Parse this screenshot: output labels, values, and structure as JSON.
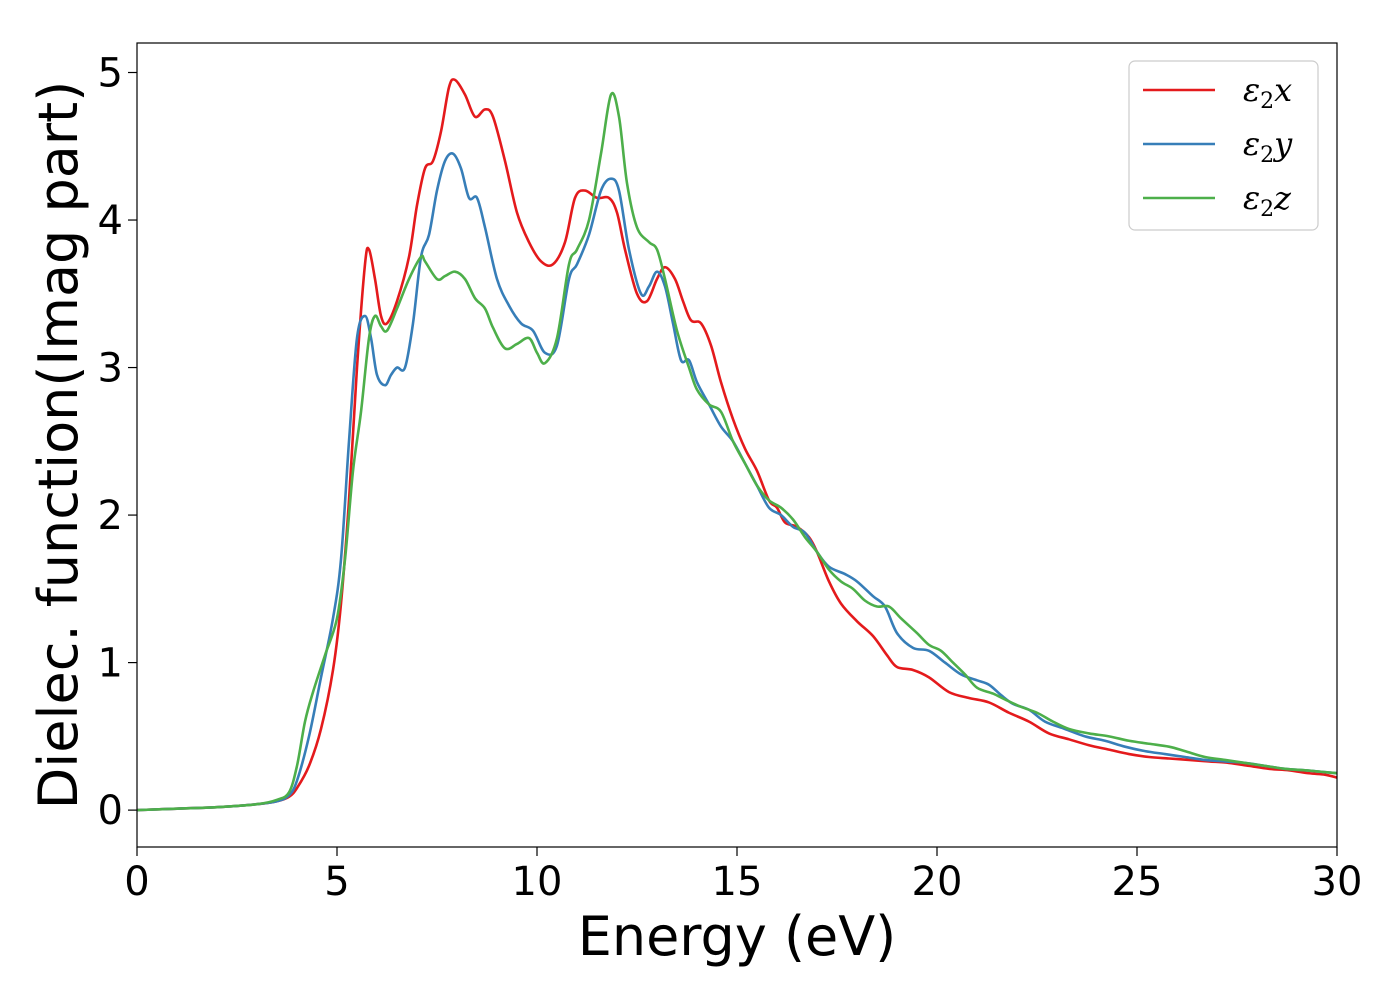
{
  "chart_data": {
    "type": "line",
    "title": "",
    "xlabel": "Energy (eV)",
    "ylabel": "Dielec. function(Imag part)",
    "xlim": [
      0,
      30
    ],
    "ylim": [
      -0.25,
      5.2
    ],
    "xticks": [
      0,
      5,
      10,
      15,
      20,
      25,
      30
    ],
    "yticks": [
      0,
      1,
      2,
      3,
      4,
      5
    ],
    "grid": false,
    "legend_position": "top-right",
    "series": [
      {
        "name": "ε₂x",
        "legend_base": "ε",
        "legend_sub": "2",
        "legend_var": "x",
        "color": "#e41a1c",
        "x": [
          0,
          1,
          2,
          3,
          3.5,
          3.8,
          4.0,
          4.3,
          4.6,
          4.9,
          5.1,
          5.3,
          5.5,
          5.7,
          5.8,
          5.95,
          6.1,
          6.25,
          6.5,
          6.8,
          7.0,
          7.2,
          7.4,
          7.6,
          7.8,
          7.95,
          8.2,
          8.45,
          8.7,
          8.9,
          9.2,
          9.5,
          9.8,
          10.1,
          10.4,
          10.7,
          10.95,
          11.2,
          11.5,
          11.8,
          12.0,
          12.2,
          12.5,
          12.75,
          13.0,
          13.2,
          13.45,
          13.65,
          13.85,
          14.1,
          14.35,
          14.6,
          14.9,
          15.2,
          15.5,
          15.8,
          16.0,
          16.2,
          16.5,
          16.8,
          17.0,
          17.3,
          17.6,
          18.0,
          18.4,
          18.75,
          19.0,
          19.4,
          19.8,
          20.3,
          20.8,
          21.3,
          21.8,
          22.3,
          22.8,
          23.3,
          23.8,
          24.3,
          24.8,
          25.3,
          25.8,
          26.3,
          26.8,
          27.3,
          27.8,
          28.3,
          28.8,
          29.3,
          29.7,
          30
        ],
        "y": [
          0.0,
          0.01,
          0.02,
          0.04,
          0.06,
          0.09,
          0.15,
          0.3,
          0.55,
          0.95,
          1.4,
          2.1,
          3.0,
          3.7,
          3.8,
          3.6,
          3.35,
          3.3,
          3.45,
          3.75,
          4.1,
          4.35,
          4.4,
          4.6,
          4.9,
          4.95,
          4.85,
          4.7,
          4.75,
          4.7,
          4.4,
          4.05,
          3.85,
          3.72,
          3.7,
          3.85,
          4.15,
          4.2,
          4.15,
          4.15,
          4.05,
          3.8,
          3.5,
          3.45,
          3.6,
          3.68,
          3.6,
          3.45,
          3.32,
          3.3,
          3.15,
          2.9,
          2.65,
          2.45,
          2.3,
          2.1,
          2.05,
          1.95,
          1.92,
          1.85,
          1.75,
          1.55,
          1.4,
          1.28,
          1.18,
          1.05,
          0.97,
          0.95,
          0.9,
          0.8,
          0.76,
          0.73,
          0.66,
          0.6,
          0.52,
          0.48,
          0.44,
          0.41,
          0.38,
          0.36,
          0.35,
          0.34,
          0.33,
          0.32,
          0.3,
          0.28,
          0.27,
          0.25,
          0.24,
          0.22
        ]
      },
      {
        "name": "ε₂y",
        "legend_base": "ε",
        "legend_sub": "2",
        "legend_var": "y",
        "color": "#377eb8",
        "x": [
          0,
          1,
          2,
          3,
          3.5,
          3.8,
          4.0,
          4.3,
          4.6,
          4.9,
          5.1,
          5.3,
          5.5,
          5.7,
          5.85,
          6.0,
          6.2,
          6.35,
          6.5,
          6.7,
          6.9,
          7.1,
          7.3,
          7.5,
          7.7,
          7.9,
          8.1,
          8.3,
          8.5,
          8.7,
          9.0,
          9.3,
          9.6,
          9.9,
          10.2,
          10.5,
          10.8,
          11.0,
          11.3,
          11.6,
          11.85,
          12.05,
          12.3,
          12.6,
          12.8,
          13.0,
          13.2,
          13.4,
          13.6,
          13.8,
          14.0,
          14.3,
          14.6,
          14.9,
          15.2,
          15.5,
          15.8,
          16.1,
          16.4,
          16.7,
          17.0,
          17.3,
          17.7,
          18.0,
          18.4,
          18.7,
          19.0,
          19.4,
          19.8,
          20.2,
          20.6,
          21.0,
          21.3,
          21.6,
          21.9,
          22.3,
          22.7,
          23.2,
          23.7,
          24.2,
          24.7,
          25.2,
          25.7,
          26.2,
          26.7,
          27.2,
          27.7,
          28.2,
          28.7,
          29.2,
          29.6,
          30
        ],
        "y": [
          0.0,
          0.01,
          0.02,
          0.04,
          0.06,
          0.1,
          0.2,
          0.5,
          0.9,
          1.3,
          1.7,
          2.5,
          3.2,
          3.35,
          3.2,
          2.95,
          2.88,
          2.95,
          3.0,
          3.0,
          3.3,
          3.75,
          3.9,
          4.2,
          4.4,
          4.45,
          4.35,
          4.15,
          4.15,
          3.95,
          3.6,
          3.42,
          3.3,
          3.25,
          3.1,
          3.15,
          3.6,
          3.7,
          3.9,
          4.2,
          4.28,
          4.2,
          3.8,
          3.5,
          3.55,
          3.65,
          3.55,
          3.3,
          3.05,
          3.05,
          2.9,
          2.75,
          2.6,
          2.5,
          2.35,
          2.2,
          2.05,
          2.0,
          1.92,
          1.88,
          1.75,
          1.65,
          1.6,
          1.55,
          1.45,
          1.38,
          1.2,
          1.1,
          1.08,
          1.0,
          0.92,
          0.88,
          0.85,
          0.78,
          0.72,
          0.68,
          0.6,
          0.55,
          0.5,
          0.47,
          0.43,
          0.4,
          0.38,
          0.36,
          0.34,
          0.33,
          0.32,
          0.3,
          0.28,
          0.27,
          0.26,
          0.25
        ]
      },
      {
        "name": "ε₂z",
        "legend_base": "ε",
        "legend_sub": "2",
        "legend_var": "z",
        "color": "#4daf4a",
        "x": [
          0,
          1,
          2,
          3,
          3.5,
          3.8,
          4.0,
          4.2,
          4.4,
          4.7,
          5.0,
          5.2,
          5.4,
          5.6,
          5.8,
          5.95,
          6.1,
          6.25,
          6.5,
          6.8,
          7.1,
          7.2,
          7.5,
          7.7,
          7.95,
          8.2,
          8.45,
          8.7,
          8.9,
          9.2,
          9.5,
          9.8,
          10.0,
          10.2,
          10.5,
          10.8,
          11.0,
          11.3,
          11.6,
          11.85,
          12.05,
          12.25,
          12.5,
          12.8,
          13.0,
          13.2,
          13.5,
          13.8,
          14.0,
          14.3,
          14.6,
          14.9,
          15.2,
          15.5,
          15.8,
          16.1,
          16.4,
          16.7,
          17.0,
          17.3,
          17.6,
          17.9,
          18.2,
          18.5,
          18.8,
          19.1,
          19.5,
          19.8,
          20.1,
          20.4,
          20.7,
          21.0,
          21.4,
          21.7,
          22.1,
          22.5,
          22.9,
          23.3,
          23.8,
          24.3,
          24.8,
          25.3,
          25.8,
          26.2,
          26.7,
          27.2,
          27.7,
          28.2,
          28.7,
          29.2,
          29.6,
          30
        ],
        "y": [
          0.0,
          0.01,
          0.02,
          0.04,
          0.07,
          0.12,
          0.3,
          0.6,
          0.8,
          1.05,
          1.3,
          1.7,
          2.3,
          2.7,
          3.2,
          3.35,
          3.28,
          3.25,
          3.4,
          3.6,
          3.75,
          3.72,
          3.6,
          3.62,
          3.65,
          3.6,
          3.47,
          3.4,
          3.27,
          3.13,
          3.16,
          3.2,
          3.1,
          3.03,
          3.2,
          3.7,
          3.8,
          4.0,
          4.45,
          4.85,
          4.7,
          4.25,
          3.95,
          3.85,
          3.8,
          3.6,
          3.25,
          3.0,
          2.85,
          2.75,
          2.7,
          2.5,
          2.35,
          2.2,
          2.1,
          2.05,
          1.97,
          1.85,
          1.75,
          1.63,
          1.55,
          1.5,
          1.42,
          1.38,
          1.38,
          1.3,
          1.2,
          1.12,
          1.08,
          1.0,
          0.92,
          0.83,
          0.79,
          0.75,
          0.7,
          0.66,
          0.6,
          0.55,
          0.52,
          0.5,
          0.47,
          0.45,
          0.43,
          0.4,
          0.36,
          0.34,
          0.32,
          0.3,
          0.28,
          0.27,
          0.26,
          0.25
        ]
      }
    ]
  }
}
